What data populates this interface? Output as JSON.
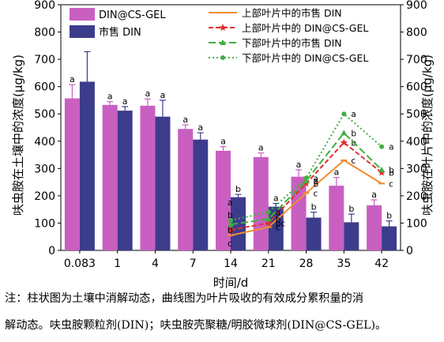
{
  "chart_data": {
    "type": "bar",
    "categories": [
      "0.083",
      "1",
      "4",
      "7",
      "14",
      "21",
      "28",
      "35",
      "42"
    ],
    "xlabel": "时间/d",
    "ylabel_left": "呋虫胺在土壤中的浓度(μg/kg)",
    "ylabel_right": "呋虫胺在叶片中的浓度(μg/kg)",
    "ylim": [
      0,
      900
    ],
    "y_ticks": [
      0,
      100,
      200,
      300,
      400,
      500,
      600,
      700,
      800,
      900
    ],
    "legend_position": "top",
    "bar_series": [
      {
        "name": "DIN@CS-GEL",
        "color": "#c95fc1",
        "values": [
          557,
          533,
          530,
          445,
          365,
          342,
          270,
          237,
          165
        ],
        "errors": [
          50,
          12,
          25,
          15,
          15,
          15,
          25,
          30,
          20
        ],
        "labels": [
          "a",
          "a",
          "a",
          "a",
          "a",
          "a",
          "a",
          "a",
          "a"
        ]
      },
      {
        "name": "市售 DIN",
        "color": "#3c3c8c",
        "values": [
          618,
          512,
          490,
          406,
          195,
          160,
          120,
          103,
          88
        ],
        "errors": [
          110,
          15,
          60,
          25,
          10,
          12,
          20,
          30,
          20
        ],
        "labels": [
          "",
          "a",
          "a",
          "a",
          "b",
          "a",
          "b",
          "b",
          "b"
        ]
      }
    ],
    "line_series": [
      {
        "name": "上部叶片中的市售 DIN",
        "color": "#f08c30",
        "dash": "solid",
        "marker": "bar",
        "x": [
          "14",
          "21",
          "28",
          "35",
          "42"
        ],
        "values": [
          55,
          85,
          210,
          330,
          245
        ],
        "labels": [
          "c",
          "c",
          "c",
          "c",
          "c"
        ]
      },
      {
        "name": "上部叶片中的 DIN@CS-GEL",
        "color": "#e03030",
        "dash": "dashed",
        "marker": "star",
        "x": [
          "14",
          "21",
          "28",
          "35",
          "42"
        ],
        "values": [
          75,
          100,
          245,
          395,
          285
        ],
        "labels": [
          "b",
          "bc",
          "b",
          "b",
          "b"
        ]
      },
      {
        "name": "下部叶片中的市售 DIN",
        "color": "#40b040",
        "dash": "longdash",
        "marker": "triangle",
        "x": [
          "14",
          "21",
          "28",
          "35",
          "42"
        ],
        "values": [
          95,
          115,
          255,
          430,
          295
        ],
        "labels": [
          "b",
          "b",
          "a",
          "b",
          "b"
        ]
      },
      {
        "name": "下部叶片中的 DIN@CS-GEL",
        "color": "#40b040",
        "dash": "dotted",
        "marker": "circle",
        "x": [
          "14",
          "21",
          "28",
          "35",
          "42"
        ],
        "values": [
          110,
          140,
          265,
          500,
          380
        ],
        "labels": [
          "a",
          "a",
          "a",
          "a",
          "a"
        ]
      }
    ]
  },
  "caption": {
    "line1": "注：柱状图为土壤中消解动态，曲线图为叶片吸收的有效成分累积量的消",
    "line2": "解动态。呋虫胺颗粒剂(DIN)；呋虫胺壳聚糖/明胶微球剂(DIN@CS-GEL)。"
  }
}
